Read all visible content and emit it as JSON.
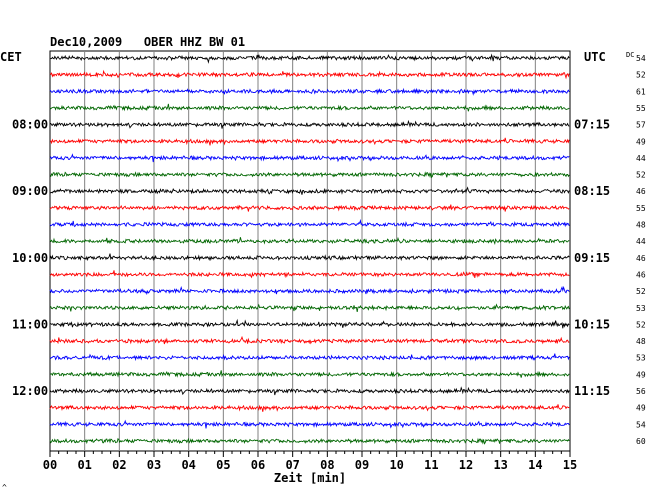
{
  "chart_data": {
    "type": "line",
    "title": "Dec10,2009   OBER HHZ BW 01",
    "left_label": "CET",
    "right_label": "UTC",
    "dc_label": "DC",
    "xlabel": "Zeit [min]",
    "xlim": [
      0,
      15
    ],
    "x_ticks": [
      "00",
      "01",
      "02",
      "03",
      "04",
      "05",
      "06",
      "07",
      "08",
      "09",
      "10",
      "11",
      "12",
      "13",
      "14",
      "15"
    ],
    "trace_colors": [
      "#000000",
      "#ff0000",
      "#0000ff",
      "#006600"
    ],
    "left_hour_labels": [
      {
        "trace": 4,
        "text": "08:00"
      },
      {
        "trace": 8,
        "text": "09:00"
      },
      {
        "trace": 12,
        "text": "10:00"
      },
      {
        "trace": 16,
        "text": "11:00"
      },
      {
        "trace": 20,
        "text": "12:00"
      }
    ],
    "right_hour_labels": [
      {
        "trace": 4,
        "text": "07:15"
      },
      {
        "trace": 8,
        "text": "08:15"
      },
      {
        "trace": 12,
        "text": "09:15"
      },
      {
        "trace": 16,
        "text": "10:15"
      },
      {
        "trace": 20,
        "text": "11:15"
      }
    ],
    "dc_values": [
      54,
      52,
      61,
      55,
      57,
      49,
      44,
      52,
      46,
      55,
      48,
      44,
      46,
      46,
      52,
      53,
      52,
      48,
      53,
      49,
      56,
      49,
      54,
      60
    ],
    "trace_count": 24,
    "footer_mark": "^"
  }
}
